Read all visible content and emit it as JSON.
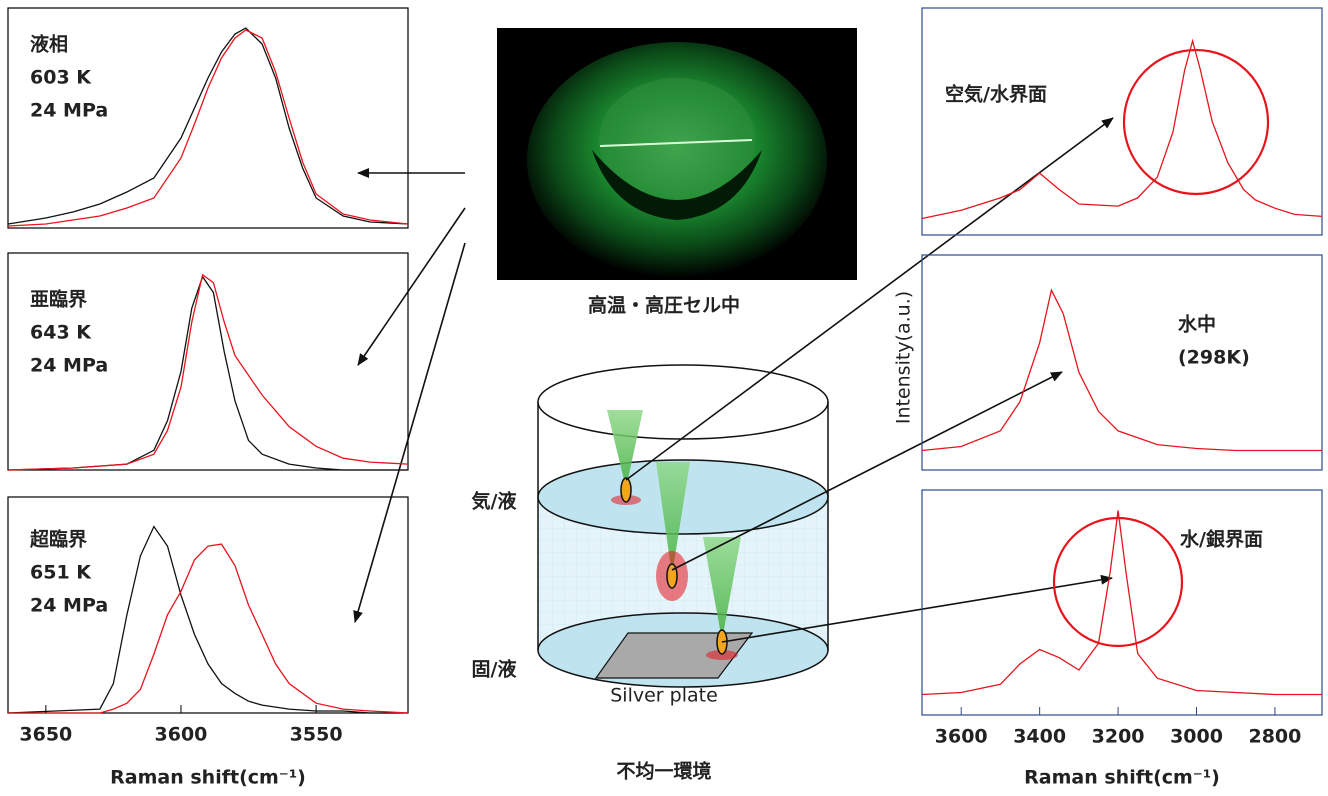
{
  "chart_data": [
    {
      "type": "line",
      "annotation": [
        "液相",
        "603 K",
        "24 MPa"
      ],
      "xlim": [
        3664,
        3516
      ],
      "ylim": [
        0,
        1.1
      ],
      "x": [
        3664,
        3650,
        3640,
        3630,
        3620,
        3610,
        3600,
        3595,
        3590,
        3585,
        3580,
        3576,
        3570,
        3565,
        3560,
        3555,
        3550,
        3540,
        3530,
        3516
      ],
      "series": [
        {
          "color": "#111111",
          "values": [
            0.02,
            0.05,
            0.08,
            0.12,
            0.18,
            0.25,
            0.45,
            0.6,
            0.75,
            0.88,
            0.97,
            1.0,
            0.92,
            0.75,
            0.5,
            0.3,
            0.15,
            0.06,
            0.03,
            0.02
          ]
        },
        {
          "color": "#e8141c",
          "values": [
            0.01,
            0.02,
            0.04,
            0.06,
            0.1,
            0.15,
            0.35,
            0.52,
            0.7,
            0.85,
            0.95,
            0.99,
            0.95,
            0.78,
            0.55,
            0.33,
            0.17,
            0.07,
            0.04,
            0.02
          ]
        }
      ]
    },
    {
      "type": "line",
      "annotation": [
        "亜臨界",
        "643 K",
        "24 MPa"
      ],
      "xlim": [
        3664,
        3516
      ],
      "ylim": [
        0,
        1.1
      ],
      "x": [
        3664,
        3640,
        3620,
        3610,
        3605,
        3600,
        3596,
        3592,
        3588,
        3584,
        3580,
        3575,
        3570,
        3560,
        3550,
        3540,
        3530,
        3516
      ],
      "series": [
        {
          "color": "#111111",
          "values": [
            0,
            0.01,
            0.03,
            0.1,
            0.25,
            0.5,
            0.82,
            0.98,
            0.9,
            0.6,
            0.35,
            0.15,
            0.08,
            0.03,
            0.01,
            0,
            0,
            0
          ]
        },
        {
          "color": "#e8141c",
          "values": [
            0,
            0.01,
            0.03,
            0.08,
            0.2,
            0.42,
            0.75,
            0.99,
            0.95,
            0.75,
            0.58,
            0.48,
            0.38,
            0.22,
            0.12,
            0.06,
            0.04,
            0.03
          ]
        }
      ]
    },
    {
      "type": "line",
      "annotation": [
        "超臨界",
        "651 K",
        "24 MPa"
      ],
      "xlim": [
        3664,
        3516
      ],
      "ylim": [
        0,
        1.1
      ],
      "xticks": [
        3650,
        3600,
        3550
      ],
      "xlabel": "Raman shift(cm⁻¹)",
      "x": [
        3664,
        3630,
        3625,
        3620,
        3615,
        3610,
        3605,
        3600,
        3595,
        3590,
        3585,
        3580,
        3575,
        3570,
        3565,
        3560,
        3550,
        3540,
        3530,
        3516
      ],
      "series": [
        {
          "color": "#111111",
          "values": [
            0,
            0.02,
            0.15,
            0.5,
            0.8,
            0.95,
            0.85,
            0.6,
            0.4,
            0.25,
            0.15,
            0.1,
            0.06,
            0.04,
            0.03,
            0.02,
            0.01,
            0.01,
            0,
            0
          ]
        },
        {
          "color": "#e8141c",
          "values": [
            0,
            0,
            0.02,
            0.05,
            0.12,
            0.3,
            0.5,
            0.62,
            0.78,
            0.85,
            0.86,
            0.75,
            0.55,
            0.4,
            0.25,
            0.15,
            0.05,
            0.02,
            0.01,
            0
          ]
        }
      ]
    },
    {
      "type": "line",
      "annotation": [
        "空気/水界面"
      ],
      "xlim": [
        3700,
        2680
      ],
      "ylim": [
        0,
        1.1
      ],
      "x": [
        3700,
        3600,
        3500,
        3450,
        3400,
        3350,
        3300,
        3200,
        3150,
        3100,
        3060,
        3030,
        3010,
        2990,
        2960,
        2920,
        2880,
        2850,
        2800,
        2750,
        2680
      ],
      "series": [
        {
          "color": "#e8141c",
          "values": [
            0.08,
            0.12,
            0.18,
            0.22,
            0.3,
            0.22,
            0.15,
            0.14,
            0.18,
            0.28,
            0.5,
            0.8,
            0.94,
            0.8,
            0.55,
            0.35,
            0.22,
            0.17,
            0.13,
            0.1,
            0.09
          ]
        }
      ]
    },
    {
      "type": "line",
      "annotation": [
        "水中",
        "(298K)"
      ],
      "ylabel": "Intensity(a.u.)",
      "xlim": [
        3700,
        2680
      ],
      "ylim": [
        0,
        1.1
      ],
      "x": [
        3700,
        3600,
        3500,
        3450,
        3400,
        3370,
        3340,
        3300,
        3250,
        3200,
        3100,
        3000,
        2900,
        2800,
        2680
      ],
      "series": [
        {
          "color": "#e8141c",
          "values": [
            0.1,
            0.12,
            0.2,
            0.35,
            0.65,
            0.92,
            0.8,
            0.5,
            0.3,
            0.2,
            0.13,
            0.11,
            0.1,
            0.1,
            0.1
          ]
        }
      ]
    },
    {
      "type": "line",
      "annotation": [
        "水/銀界面"
      ],
      "xlim": [
        3700,
        2680
      ],
      "ylim": [
        0,
        1.1
      ],
      "xticks": [
        3600,
        3400,
        3200,
        3000,
        2800
      ],
      "xlabel": "Raman shift(cm⁻¹)",
      "x": [
        3700,
        3600,
        3500,
        3450,
        3400,
        3350,
        3300,
        3250,
        3220,
        3200,
        3180,
        3150,
        3100,
        3000,
        2900,
        2800,
        2680
      ],
      "series": [
        {
          "color": "#e8141c",
          "values": [
            0.1,
            0.11,
            0.15,
            0.25,
            0.32,
            0.28,
            0.22,
            0.35,
            0.7,
            1.0,
            0.7,
            0.3,
            0.18,
            0.12,
            0.11,
            0.1,
            0.1
          ]
        }
      ]
    }
  ],
  "diagram": {
    "photo_caption": "高温・高圧セル中",
    "gas_liquid": "気/液",
    "solid_liquid": "固/液",
    "plate": "Silver plate",
    "caption": "不均一環境"
  }
}
